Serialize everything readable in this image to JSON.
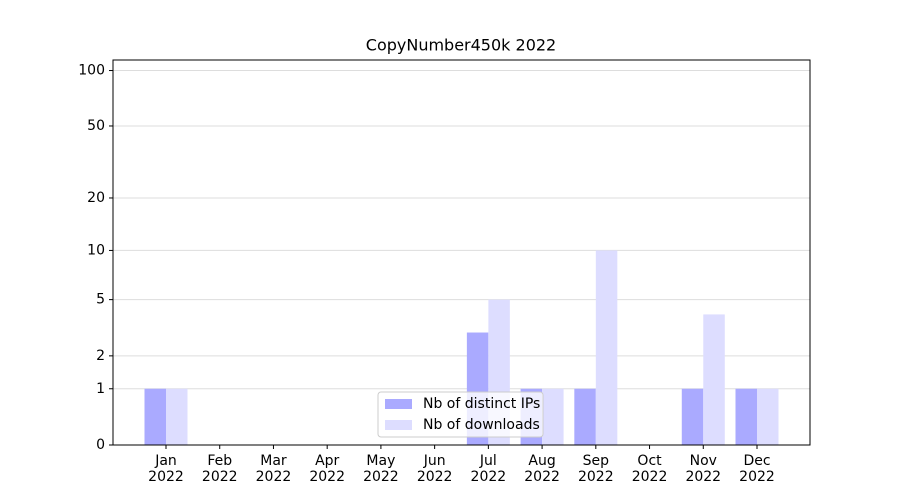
{
  "chart_data": {
    "type": "bar",
    "title": "CopyNumber450k 2022",
    "categories": [
      "Jan 2022",
      "Feb 2022",
      "Mar 2022",
      "Apr 2022",
      "May 2022",
      "Jun 2022",
      "Jul 2022",
      "Aug 2022",
      "Sep 2022",
      "Oct 2022",
      "Nov 2022",
      "Dec 2022"
    ],
    "series": [
      {
        "name": "Nb of distinct IPs",
        "color": "#aaaaff",
        "values": [
          1,
          0,
          0,
          0,
          0,
          0,
          3,
          1,
          1,
          0,
          1,
          1
        ]
      },
      {
        "name": "Nb of downloads",
        "color": "#ddddff",
        "values": [
          1,
          0,
          0,
          0,
          0,
          0,
          5,
          1,
          10,
          0,
          4,
          1
        ]
      }
    ],
    "ylim": [
      0,
      114
    ],
    "yticks": [
      0,
      1,
      2,
      5,
      10,
      20,
      50,
      100
    ],
    "yscale": "log1p",
    "grid": true,
    "legend": "lower center"
  }
}
